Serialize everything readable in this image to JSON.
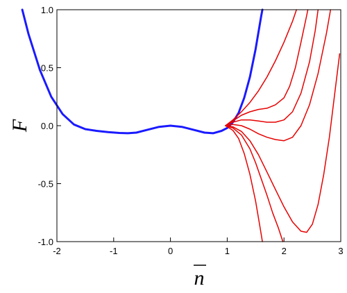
{
  "chart_data": {
    "type": "line",
    "xlabel": "n",
    "xlabel_overbar": true,
    "ylabel": "F",
    "xlim": [
      -2,
      3
    ],
    "ylim": [
      -1.0,
      1.0
    ],
    "xticks": [
      -2,
      -1,
      0,
      1,
      2,
      3
    ],
    "xtick_labels": [
      "-2",
      "-1",
      "0",
      "1",
      "2",
      "3"
    ],
    "yticks": [
      1.0,
      0.5,
      0.0,
      -0.5,
      -1.0
    ],
    "ytick_labels": [
      "1.0",
      "0.5",
      "0.0",
      "-0.5",
      "-1.0"
    ],
    "grid": false,
    "legend": "none",
    "series": [
      {
        "color": "#1a1aff",
        "width": 3,
        "points": [
          [
            -2.61,
            1.0
          ],
          [
            -2.5,
            0.79
          ],
          [
            -2.3,
            0.48
          ],
          [
            -2.1,
            0.25
          ],
          [
            -1.9,
            0.1
          ],
          [
            -1.7,
            0.01
          ],
          [
            -1.5,
            -0.03
          ],
          [
            -1.3,
            -0.045
          ],
          [
            -1.1,
            -0.055
          ],
          [
            -0.9,
            -0.063
          ],
          [
            -0.75,
            -0.065
          ],
          [
            -0.6,
            -0.06
          ],
          [
            -0.4,
            -0.035
          ],
          [
            -0.2,
            -0.01
          ],
          [
            0.0,
            0.0
          ],
          [
            0.2,
            -0.01
          ],
          [
            0.4,
            -0.035
          ],
          [
            0.6,
            -0.06
          ],
          [
            0.75,
            -0.065
          ],
          [
            0.9,
            -0.045
          ],
          [
            1.0,
            -0.02
          ],
          [
            1.1,
            0.03
          ],
          [
            1.2,
            0.11
          ],
          [
            1.3,
            0.24
          ],
          [
            1.4,
            0.42
          ],
          [
            1.5,
            0.66
          ],
          [
            1.6,
            0.95
          ],
          [
            1.62,
            1.0
          ]
        ]
      },
      {
        "color": "#e60000",
        "width": 1.5,
        "points": [
          [
            0.97,
            0.0
          ],
          [
            1.1,
            0.05
          ],
          [
            1.25,
            0.12
          ],
          [
            1.4,
            0.2
          ],
          [
            1.55,
            0.3
          ],
          [
            1.7,
            0.42
          ],
          [
            1.85,
            0.56
          ],
          [
            2.0,
            0.72
          ],
          [
            2.15,
            0.9
          ],
          [
            2.22,
            1.0
          ]
        ]
      },
      {
        "color": "#e60000",
        "width": 1.5,
        "points": [
          [
            0.97,
            0.0
          ],
          [
            1.1,
            0.04
          ],
          [
            1.25,
            0.09
          ],
          [
            1.4,
            0.12
          ],
          [
            1.55,
            0.14
          ],
          [
            1.7,
            0.15
          ],
          [
            1.85,
            0.18
          ],
          [
            2.0,
            0.24
          ],
          [
            2.1,
            0.34
          ],
          [
            2.2,
            0.5
          ],
          [
            2.3,
            0.72
          ],
          [
            2.4,
            0.95
          ],
          [
            2.42,
            1.0
          ]
        ]
      },
      {
        "color": "#e60000",
        "width": 1.5,
        "points": [
          [
            0.97,
            0.0
          ],
          [
            1.1,
            0.03
          ],
          [
            1.25,
            0.05
          ],
          [
            1.4,
            0.05
          ],
          [
            1.55,
            0.04
          ],
          [
            1.7,
            0.03
          ],
          [
            1.85,
            0.03
          ],
          [
            2.0,
            0.05
          ],
          [
            2.15,
            0.12
          ],
          [
            2.3,
            0.28
          ],
          [
            2.45,
            0.55
          ],
          [
            2.55,
            0.82
          ],
          [
            2.6,
            1.0
          ]
        ]
      },
      {
        "color": "#e60000",
        "width": 1.5,
        "points": [
          [
            0.97,
            0.0
          ],
          [
            1.1,
            0.01
          ],
          [
            1.25,
            0.0
          ],
          [
            1.4,
            -0.03
          ],
          [
            1.55,
            -0.07
          ],
          [
            1.7,
            -0.1
          ],
          [
            1.85,
            -0.12
          ],
          [
            2.0,
            -0.13
          ],
          [
            2.15,
            -0.1
          ],
          [
            2.3,
            0.0
          ],
          [
            2.45,
            0.18
          ],
          [
            2.6,
            0.45
          ],
          [
            2.75,
            0.8
          ],
          [
            2.82,
            1.0
          ]
        ]
      },
      {
        "color": "#e60000",
        "width": 1.5,
        "points": [
          [
            0.97,
            0.0
          ],
          [
            1.1,
            -0.01
          ],
          [
            1.25,
            -0.05
          ],
          [
            1.4,
            -0.13
          ],
          [
            1.55,
            -0.25
          ],
          [
            1.7,
            -0.4
          ],
          [
            1.85,
            -0.55
          ],
          [
            2.0,
            -0.7
          ],
          [
            2.15,
            -0.83
          ],
          [
            2.3,
            -0.91
          ],
          [
            2.4,
            -0.92
          ],
          [
            2.5,
            -0.85
          ],
          [
            2.6,
            -0.68
          ],
          [
            2.7,
            -0.42
          ],
          [
            2.8,
            -0.1
          ],
          [
            2.9,
            0.3
          ],
          [
            2.98,
            0.62
          ]
        ]
      },
      {
        "color": "#e60000",
        "width": 1.5,
        "points": [
          [
            0.97,
            0.0
          ],
          [
            1.1,
            -0.02
          ],
          [
            1.25,
            -0.08
          ],
          [
            1.4,
            -0.2
          ],
          [
            1.5,
            -0.32
          ],
          [
            1.6,
            -0.46
          ],
          [
            1.7,
            -0.6
          ],
          [
            1.8,
            -0.75
          ],
          [
            1.9,
            -0.88
          ],
          [
            1.98,
            -1.0
          ]
        ]
      },
      {
        "color": "#e60000",
        "width": 1.5,
        "points": [
          [
            0.97,
            0.0
          ],
          [
            1.1,
            -0.04
          ],
          [
            1.2,
            -0.11
          ],
          [
            1.3,
            -0.24
          ],
          [
            1.4,
            -0.42
          ],
          [
            1.5,
            -0.65
          ],
          [
            1.58,
            -0.88
          ],
          [
            1.62,
            -1.0
          ]
        ]
      }
    ]
  }
}
